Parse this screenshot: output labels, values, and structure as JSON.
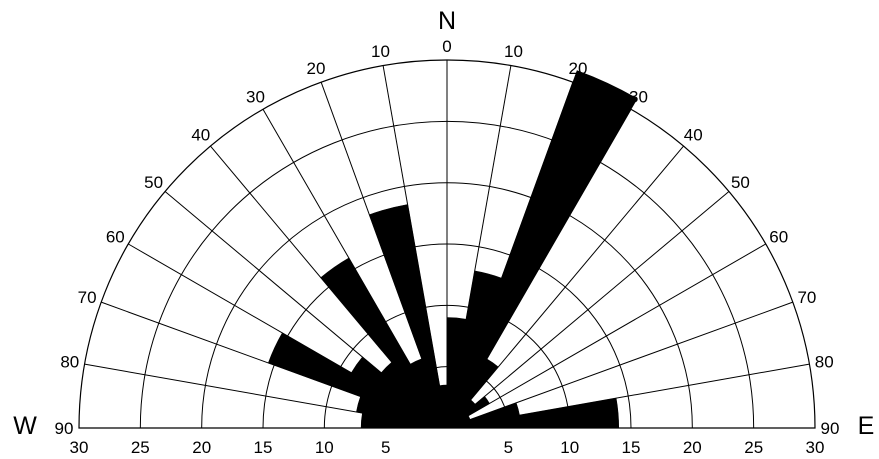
{
  "chart_data": {
    "type": "rose",
    "title": "",
    "direction_labels": {
      "north": "N",
      "west": "W",
      "east": "E"
    },
    "bin_width_deg": 10,
    "bins_deg": [
      -90,
      -80,
      -70,
      -60,
      -50,
      -40,
      -30,
      -20,
      -10,
      0,
      10,
      20,
      30,
      40,
      50,
      60,
      70,
      80
    ],
    "values": [
      7,
      7.5,
      15.5,
      9,
      7,
      16,
      6,
      18.5,
      3.5,
      9,
      13,
      31,
      6.5,
      3,
      4,
      2,
      6,
      14
    ],
    "radial_axis": {
      "min": 0,
      "max": 30,
      "step": 5,
      "ticks": [
        0,
        5,
        10,
        15,
        20,
        25,
        30
      ]
    },
    "angle_ticks_left": [
      90,
      80,
      70,
      60,
      50,
      40,
      30,
      20,
      10
    ],
    "angle_ticks_right": [
      10,
      20,
      30,
      40,
      50,
      60,
      70,
      80,
      90
    ],
    "angle_tick_center": 0,
    "bar_color": "#000000",
    "grid": true
  }
}
